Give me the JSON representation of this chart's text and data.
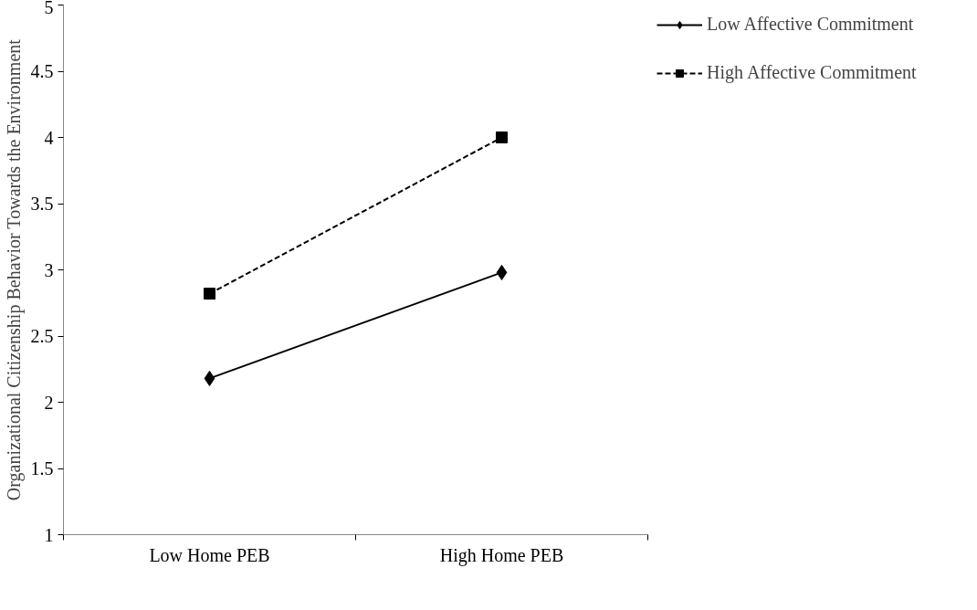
{
  "chart_data": {
    "type": "line",
    "ylabel": "Organizational Citizenship Behavior Towards the Environment",
    "categories": [
      "Low Home PEB",
      "High Home PEB"
    ],
    "ylim": [
      1,
      5
    ],
    "yticks": [
      1,
      1.5,
      2,
      2.5,
      3,
      3.5,
      4,
      4.5,
      5
    ],
    "grid": false,
    "legend": "right",
    "series": [
      {
        "name": "Low Affective Commitment",
        "color": "#000000",
        "values": [
          2.18,
          2.98
        ],
        "marker": "diamond",
        "line_style": "solid"
      },
      {
        "name": "High Affective Commitment",
        "color": "#000000",
        "values": [
          2.82,
          4.0
        ],
        "marker": "square",
        "line_style": "dashed"
      }
    ]
  }
}
